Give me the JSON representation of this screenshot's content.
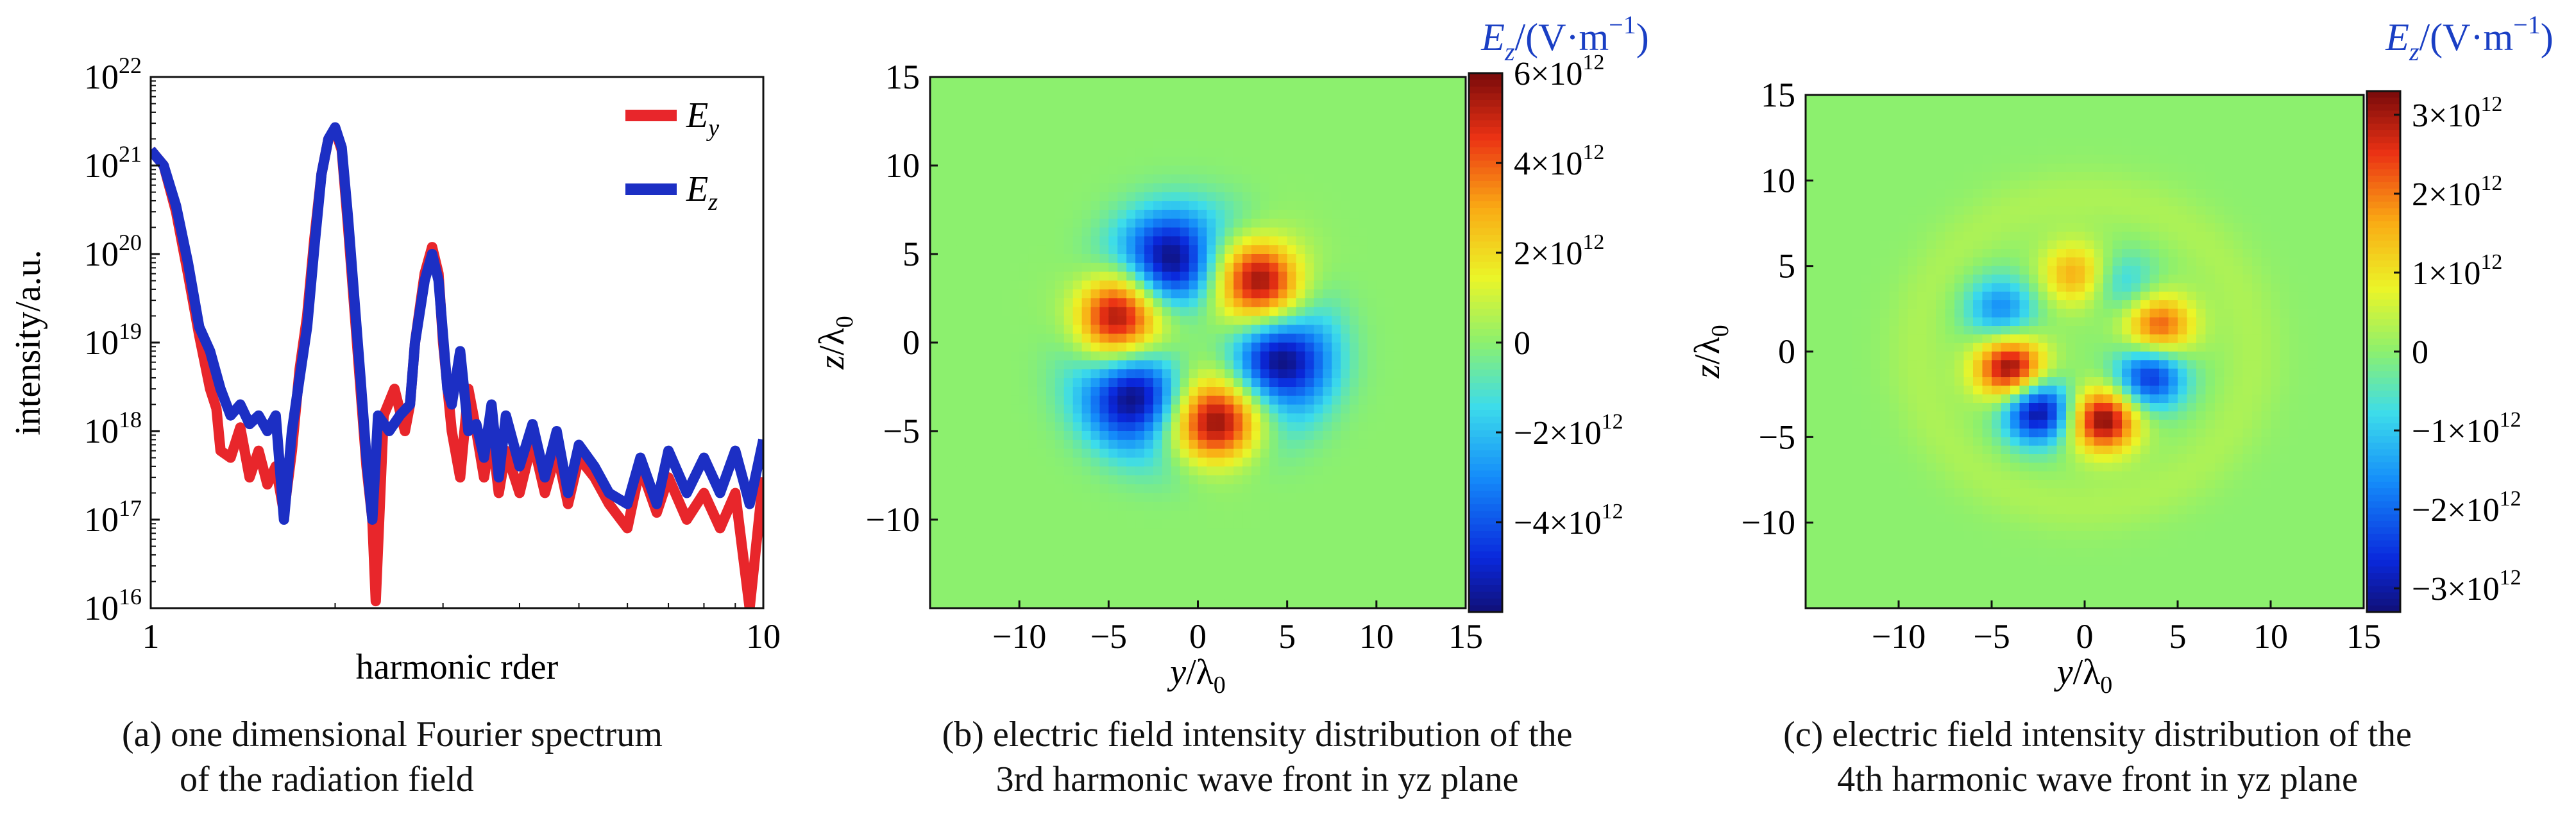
{
  "chart_data": [
    {
      "panel": "a",
      "type": "line",
      "xlabel": "harmonic rder",
      "ylabel": "intensity/a.u.",
      "x_scale": "log",
      "y_scale": "log",
      "xlim": [
        1,
        10
      ],
      "ylim": [
        1e+16,
        1e+22
      ],
      "x_ticks": [
        {
          "value": 1,
          "label": "1"
        },
        {
          "value": 10,
          "label": "10"
        }
      ],
      "y_ticks": [
        {
          "value": 1e+16,
          "base": "10",
          "exp": "16"
        },
        {
          "value": 1e+17,
          "base": "10",
          "exp": "17"
        },
        {
          "value": 1e+18,
          "base": "10",
          "exp": "18"
        },
        {
          "value": 1e+19,
          "base": "10",
          "exp": "19"
        },
        {
          "value": 1e+20,
          "base": "10",
          "exp": "20"
        },
        {
          "value": 1e+21,
          "base": "10",
          "exp": "21"
        },
        {
          "value": 1e+22,
          "base": "10",
          "exp": "22"
        }
      ],
      "legend_position": "top-right",
      "series": [
        {
          "name": "E_y",
          "legend_main": "E",
          "legend_sub": "y",
          "color": "#e8262b",
          "points": [
            [
              1.0,
              1.5e+21
            ],
            [
              1.05,
              1e+21
            ],
            [
              1.1,
              3e+20
            ],
            [
              1.15,
              6e+19
            ],
            [
              1.2,
              1.2e+19
            ],
            [
              1.25,
              3e+18
            ],
            [
              1.28,
              1.8e+18
            ],
            [
              1.3,
              6e+17
            ],
            [
              1.35,
              5e+17
            ],
            [
              1.4,
              1.1e+18
            ],
            [
              1.45,
              3e+17
            ],
            [
              1.5,
              6e+17
            ],
            [
              1.55,
              2.5e+17
            ],
            [
              1.6,
              4e+17
            ],
            [
              1.65,
              1.2e+17
            ],
            [
              1.7,
              6e+17
            ],
            [
              1.75,
              5e+18
            ],
            [
              1.8,
              2e+19
            ],
            [
              1.85,
              1.5e+20
            ],
            [
              1.9,
              8e+20
            ],
            [
              1.95,
              2e+21
            ],
            [
              2.0,
              2.5e+21
            ],
            [
              2.05,
              1.5e+21
            ],
            [
              2.1,
              2e+20
            ],
            [
              2.2,
              3e+18
            ],
            [
              2.25,
              4e+17
            ],
            [
              2.3,
              1e+17
            ],
            [
              2.33,
              1.2e+16
            ],
            [
              2.4,
              1.5e+18
            ],
            [
              2.5,
              3e+18
            ],
            [
              2.6,
              1e+18
            ],
            [
              2.65,
              2e+18
            ],
            [
              2.7,
              1e+19
            ],
            [
              2.8,
              6e+19
            ],
            [
              2.88,
              1.2e+20
            ],
            [
              2.95,
              6e+19
            ],
            [
              3.0,
              1e+19
            ],
            [
              3.1,
              1e+18
            ],
            [
              3.2,
              3e+17
            ],
            [
              3.3,
              3e+18
            ],
            [
              3.4,
              1e+18
            ],
            [
              3.5,
              3e+17
            ],
            [
              3.6,
              1e+18
            ],
            [
              3.7,
              2e+17
            ],
            [
              3.8,
              6e+17
            ],
            [
              4.0,
              2e+17
            ],
            [
              4.2,
              8e+17
            ],
            [
              4.4,
              2e+17
            ],
            [
              4.6,
              6e+17
            ],
            [
              4.8,
              1.5e+17
            ],
            [
              5.0,
              5e+17
            ],
            [
              5.3,
              3e+17
            ],
            [
              5.6,
              1.5e+17
            ],
            [
              6.0,
              8e+16
            ],
            [
              6.3,
              4e+17
            ],
            [
              6.7,
              1.2e+17
            ],
            [
              7.0,
              3e+17
            ],
            [
              7.5,
              1e+17
            ],
            [
              8.0,
              2e+17
            ],
            [
              8.5,
              8e+16
            ],
            [
              9.0,
              2e+17
            ],
            [
              9.5,
              1e+16
            ],
            [
              10.0,
              3e+17
            ]
          ]
        },
        {
          "name": "E_z",
          "legend_main": "E",
          "legend_sub": "z",
          "color": "#1c2fc4",
          "points": [
            [
              1.0,
              1.5e+21
            ],
            [
              1.05,
              1e+21
            ],
            [
              1.1,
              3.5e+20
            ],
            [
              1.15,
              8e+19
            ],
            [
              1.2,
              1.5e+19
            ],
            [
              1.25,
              8e+18
            ],
            [
              1.3,
              3e+18
            ],
            [
              1.35,
              1.5e+18
            ],
            [
              1.4,
              2e+18
            ],
            [
              1.45,
              1.2e+18
            ],
            [
              1.5,
              1.5e+18
            ],
            [
              1.55,
              1e+18
            ],
            [
              1.6,
              1.5e+18
            ],
            [
              1.65,
              1e+17
            ],
            [
              1.7,
              1e+18
            ],
            [
              1.75,
              4e+18
            ],
            [
              1.8,
              1.5e+19
            ],
            [
              1.85,
              1.2e+20
            ],
            [
              1.9,
              8e+20
            ],
            [
              1.95,
              2e+21
            ],
            [
              2.0,
              2.7e+21
            ],
            [
              2.05,
              1.6e+21
            ],
            [
              2.1,
              2.5e+20
            ],
            [
              2.2,
              4e+18
            ],
            [
              2.25,
              5e+17
            ],
            [
              2.3,
              1e+17
            ],
            [
              2.35,
              1.5e+18
            ],
            [
              2.45,
              1e+18
            ],
            [
              2.55,
              1.5e+18
            ],
            [
              2.65,
              2e+18
            ],
            [
              2.7,
              1e+19
            ],
            [
              2.8,
              5e+19
            ],
            [
              2.88,
              1e+20
            ],
            [
              2.95,
              5e+19
            ],
            [
              3.0,
              1.2e+19
            ],
            [
              3.05,
              3e+18
            ],
            [
              3.1,
              2e+18
            ],
            [
              3.2,
              8e+18
            ],
            [
              3.3,
              1e+18
            ],
            [
              3.4,
              1.2e+18
            ],
            [
              3.5,
              5e+17
            ],
            [
              3.6,
              2e+18
            ],
            [
              3.7,
              3e+17
            ],
            [
              3.8,
              1.5e+18
            ],
            [
              4.0,
              4e+17
            ],
            [
              4.2,
              1.2e+18
            ],
            [
              4.4,
              3e+17
            ],
            [
              4.6,
              1e+18
            ],
            [
              4.8,
              2e+17
            ],
            [
              5.0,
              7e+17
            ],
            [
              5.3,
              4e+17
            ],
            [
              5.6,
              2e+17
            ],
            [
              6.0,
              1.5e+17
            ],
            [
              6.3,
              5e+17
            ],
            [
              6.7,
              1.5e+17
            ],
            [
              7.0,
              6e+17
            ],
            [
              7.5,
              2e+17
            ],
            [
              8.0,
              5e+17
            ],
            [
              8.5,
              2e+17
            ],
            [
              9.0,
              6e+17
            ],
            [
              9.5,
              1.5e+17
            ],
            [
              10.0,
              8e+17
            ]
          ]
        }
      ],
      "caption_lines": [
        "(a) one dimensional Fourier spectrum",
        "of the radiation field"
      ]
    },
    {
      "panel": "b",
      "type": "heatmap",
      "xlabel_main": "y",
      "xlabel_sep": "/λ",
      "xlabel_sub": "0",
      "ylabel_main": "z",
      "ylabel_sep": "/λ",
      "ylabel_sub": "0",
      "xlim": [
        -15,
        15
      ],
      "ylim": [
        -15,
        15
      ],
      "x_ticks": [
        {
          "value": -10,
          "label": "−10"
        },
        {
          "value": -5,
          "label": "−5"
        },
        {
          "value": 0,
          "label": "0"
        },
        {
          "value": 5,
          "label": "5"
        },
        {
          "value": 10,
          "label": "10"
        },
        {
          "value": 15,
          "label": "15"
        }
      ],
      "y_ticks": [
        {
          "value": 15,
          "label": "15"
        },
        {
          "value": 10,
          "label": "10"
        },
        {
          "value": 5,
          "label": "5"
        },
        {
          "value": 0,
          "label": "0"
        },
        {
          "value": -5,
          "label": "−5"
        },
        {
          "value": -10,
          "label": "−10"
        }
      ],
      "colorbar_title": {
        "main": "E",
        "sub": "z",
        "rest": "/(V·m",
        "sup": "−1",
        "end": ")"
      },
      "colorbar_color": "#1a3fc4",
      "colorbar_range": [
        -6000000000000.0,
        6000000000000.0
      ],
      "colorbar_ticks": [
        {
          "value": 6000000000000.0,
          "pre": "6×10",
          "exp": "12"
        },
        {
          "value": 4000000000000.0,
          "pre": "4×10",
          "exp": "12"
        },
        {
          "value": 2000000000000.0,
          "pre": "2×10",
          "exp": "12"
        },
        {
          "value": 0,
          "pre": "0",
          "exp": ""
        },
        {
          "value": -2000000000000.0,
          "pre": "−2×10",
          "exp": "12"
        },
        {
          "value": -4000000000000.0,
          "pre": "−4×10",
          "exp": "12"
        }
      ],
      "background_level": 0.0,
      "lobes": [
        {
          "y": -1.5,
          "z": 4.5,
          "amplitude": -1.0
        },
        {
          "y": 3.5,
          "z": 3.5,
          "amplitude": 1.0
        },
        {
          "y": 4.5,
          "z": -1.0,
          "amplitude": -1.0
        },
        {
          "y": 1.0,
          "z": -4.5,
          "amplitude": 1.0
        },
        {
          "y": -3.5,
          "z": -3.0,
          "amplitude": -1.0
        },
        {
          "y": -4.5,
          "z": 1.5,
          "amplitude": 1.0
        }
      ],
      "lobe_width": 1.8,
      "ring_radius": 7.0,
      "ring_amplitude": -0.15,
      "caption_lines": [
        "(b) electric field intensity distribution of the",
        "3rd harmonic wave front in yz plane"
      ]
    },
    {
      "panel": "c",
      "type": "heatmap",
      "xlabel_main": "y",
      "xlabel_sep": "/λ",
      "xlabel_sub": "0",
      "ylabel_main": "z",
      "ylabel_sep": "/λ",
      "ylabel_sub": "0",
      "xlim": [
        -15,
        15
      ],
      "ylim": [
        -15,
        15
      ],
      "x_ticks": [
        {
          "value": -10,
          "label": "−10"
        },
        {
          "value": -5,
          "label": "−5"
        },
        {
          "value": 0,
          "label": "0"
        },
        {
          "value": 5,
          "label": "5"
        },
        {
          "value": 10,
          "label": "10"
        },
        {
          "value": 15,
          "label": "15"
        }
      ],
      "y_ticks": [
        {
          "value": 15,
          "label": "15"
        },
        {
          "value": 10,
          "label": "10"
        },
        {
          "value": 5,
          "label": "5"
        },
        {
          "value": 0,
          "label": "0"
        },
        {
          "value": -5,
          "label": "−5"
        },
        {
          "value": -10,
          "label": "−10"
        }
      ],
      "colorbar_title": {
        "main": "E",
        "sub": "z",
        "rest": "/(V·m",
        "sup": "−1",
        "end": ")"
      },
      "colorbar_color": "#1a3fc4",
      "colorbar_range": [
        -3300000000000.0,
        3300000000000.0
      ],
      "colorbar_ticks": [
        {
          "value": 3000000000000.0,
          "pre": "3×10",
          "exp": "12"
        },
        {
          "value": 2000000000000.0,
          "pre": "2×10",
          "exp": "12"
        },
        {
          "value": 1000000000000.0,
          "pre": "1×10",
          "exp": "12"
        },
        {
          "value": 0,
          "pre": "0",
          "exp": ""
        },
        {
          "value": -1000000000000.0,
          "pre": "−1×10",
          "exp": "12"
        },
        {
          "value": -2000000000000.0,
          "pre": "−2×10",
          "exp": "12"
        },
        {
          "value": -3000000000000.0,
          "pre": "−3×10",
          "exp": "12"
        }
      ],
      "background_level": 0.0,
      "lobes": [
        {
          "y": -2.5,
          "z": -3.5,
          "amplitude": -1.0
        },
        {
          "y": 1.0,
          "z": -4.0,
          "amplitude": 1.0
        },
        {
          "y": -4.0,
          "z": -1.0,
          "amplitude": 1.0
        },
        {
          "y": 3.5,
          "z": -1.5,
          "amplitude": -0.8
        },
        {
          "y": 4.0,
          "z": 1.5,
          "amplitude": 0.7
        },
        {
          "y": -4.5,
          "z": 2.5,
          "amplitude": -0.5
        },
        {
          "y": -0.5,
          "z": 4.5,
          "amplitude": 0.5
        },
        {
          "y": 2.0,
          "z": 4.0,
          "amplitude": -0.3
        }
      ],
      "lobe_width": 1.3,
      "ring_radius": 9.0,
      "ring_amplitude": 0.08,
      "caption_lines": [
        "(c) electric field intensity distribution of the",
        "4th harmonic wave front in yz plane"
      ]
    }
  ]
}
